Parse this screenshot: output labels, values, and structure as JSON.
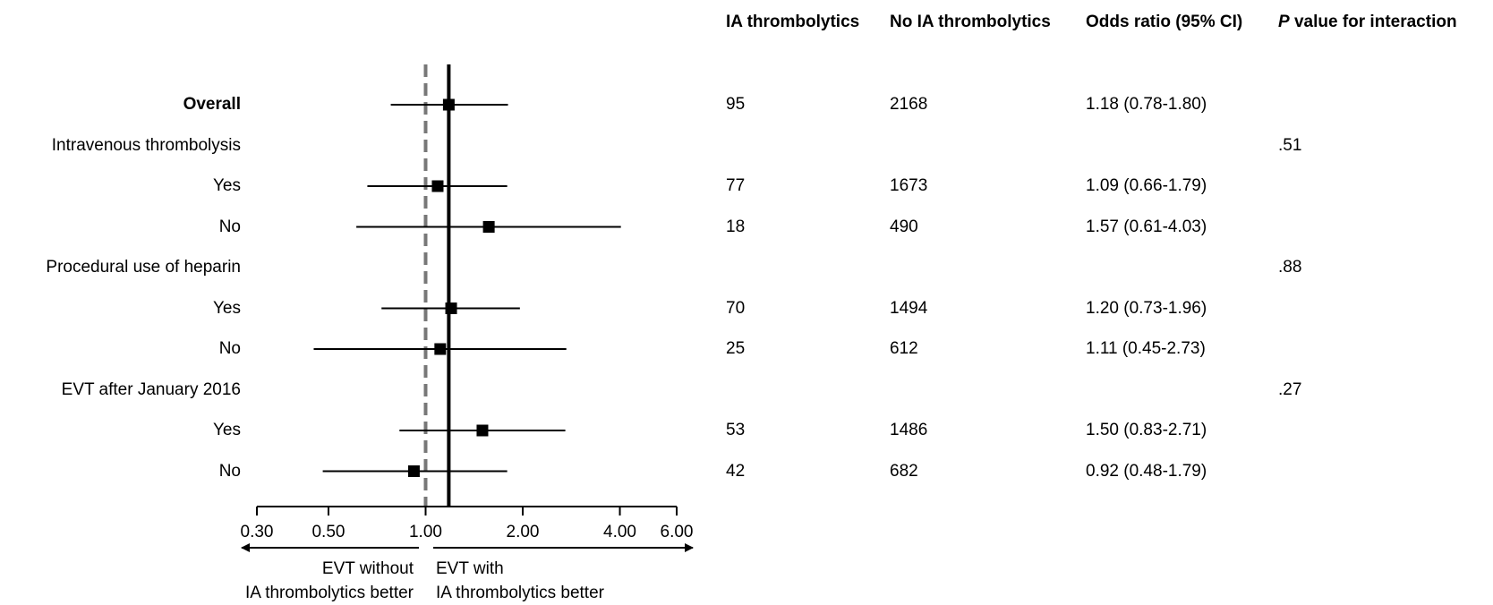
{
  "chart_data": {
    "type": "forest",
    "columns": {
      "ia": "IA thrombolytics",
      "no_ia": "No IA thrombolytics",
      "or": "Odds ratio (95% CI)",
      "p_prefix": "P",
      "p_rest": " value for interaction"
    },
    "rows": [
      {
        "label": "Overall",
        "bold": true,
        "ia": "95",
        "no_ia": "2168",
        "or_text": "1.18 (0.78-1.80)",
        "or": 1.18,
        "lo": 0.78,
        "hi": 1.8,
        "p": ""
      },
      {
        "label": "Intravenous thrombolysis",
        "header": true,
        "p": ".51"
      },
      {
        "label": "Yes",
        "ia": "77",
        "no_ia": "1673",
        "or_text": "1.09 (0.66-1.79)",
        "or": 1.09,
        "lo": 0.66,
        "hi": 1.79,
        "p": ""
      },
      {
        "label": "No",
        "ia": "18",
        "no_ia": "490",
        "or_text": "1.57 (0.61-4.03)",
        "or": 1.57,
        "lo": 0.61,
        "hi": 4.03,
        "p": ""
      },
      {
        "label": "Procedural use of heparin",
        "header": true,
        "p": ".88"
      },
      {
        "label": "Yes",
        "ia": "70",
        "no_ia": "1494",
        "or_text": "1.20 (0.73-1.96)",
        "or": 1.2,
        "lo": 0.73,
        "hi": 1.96,
        "p": ""
      },
      {
        "label": "No",
        "ia": "25",
        "no_ia": "612",
        "or_text": "1.11 (0.45-2.73)",
        "or": 1.11,
        "lo": 0.45,
        "hi": 2.73,
        "p": ""
      },
      {
        "label": "EVT after January 2016",
        "header": true,
        "p": ".27"
      },
      {
        "label": "Yes",
        "ia": "53",
        "no_ia": "1486",
        "or_text": "1.50 (0.83-2.71)",
        "or": 1.5,
        "lo": 0.83,
        "hi": 2.71,
        "p": ""
      },
      {
        "label": "No",
        "ia": "42",
        "no_ia": "682",
        "or_text": "0.92 (0.48-1.79)",
        "or": 0.92,
        "lo": 0.48,
        "hi": 1.79,
        "p": ""
      }
    ],
    "x_axis": {
      "scale": "log",
      "ticks": [
        0.3,
        0.5,
        1.0,
        2.0,
        4.0,
        6.0
      ],
      "tick_labels": [
        "0.30",
        "0.50",
        "1.00",
        "2.00",
        "4.00",
        "6.00"
      ],
      "range": [
        0.3,
        6.0
      ]
    },
    "reference_lines": {
      "null_value": 1.0,
      "overall_value": 1.18
    },
    "direction_labels": {
      "left_line1": "EVT without",
      "left_line2": "IA thrombolytics better",
      "right_line1": "EVT with",
      "right_line2": "IA thrombolytics better"
    }
  }
}
